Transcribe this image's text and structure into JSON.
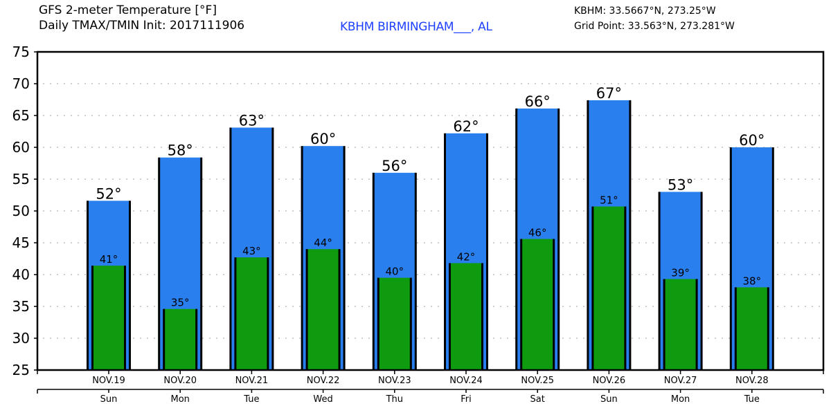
{
  "header": {
    "title_line1": "GFS 2-meter Temperature [°F]",
    "title_line2": "Daily TMAX/TMIN Init: 2017111906",
    "station": "KBHM BIRMINGHAM___, AL",
    "station_coords": "KBHM: 33.5667°N, 273.25°W",
    "grid_point": "Grid Point: 33.563°N, 273.281°W"
  },
  "colors": {
    "tmax_bar": "#2a7fee",
    "tmin_bar": "#0f9b0f",
    "station_text": "#2040ff",
    "grid": "#b0b0b0"
  },
  "chart_data": {
    "type": "bar",
    "title": "GFS 2-meter Temperature [°F]",
    "subtitle": "Daily TMAX/TMIN Init: 2017111906",
    "xlabel": "",
    "ylabel": "",
    "ylim": [
      25,
      75
    ],
    "yticks": [
      25,
      30,
      35,
      40,
      45,
      50,
      55,
      60,
      65,
      70,
      75
    ],
    "grid": true,
    "categories": [
      "NOV.19",
      "NOV.20",
      "NOV.21",
      "NOV.22",
      "NOV.23",
      "NOV.24",
      "NOV.25",
      "NOV.26",
      "NOV.27",
      "NOV.28"
    ],
    "weekdays": [
      "Sun",
      "Mon",
      "Tue",
      "Wed",
      "Thu",
      "Fri",
      "Sat",
      "Sun",
      "Mon",
      "Tue"
    ],
    "series": [
      {
        "name": "TMAX",
        "values": [
          51.6,
          58.4,
          63.1,
          60.2,
          56.0,
          62.2,
          66.1,
          67.4,
          53.0,
          60.0
        ],
        "labels": [
          "52°",
          "58°",
          "63°",
          "60°",
          "56°",
          "62°",
          "66°",
          "67°",
          "53°",
          "60°"
        ]
      },
      {
        "name": "TMIN",
        "values": [
          41.4,
          34.6,
          42.7,
          44.0,
          39.5,
          41.8,
          45.6,
          50.7,
          39.3,
          38.0
        ],
        "labels": [
          "41°",
          "35°",
          "43°",
          "44°",
          "40°",
          "42°",
          "46°",
          "51°",
          "39°",
          "38°"
        ]
      }
    ]
  }
}
